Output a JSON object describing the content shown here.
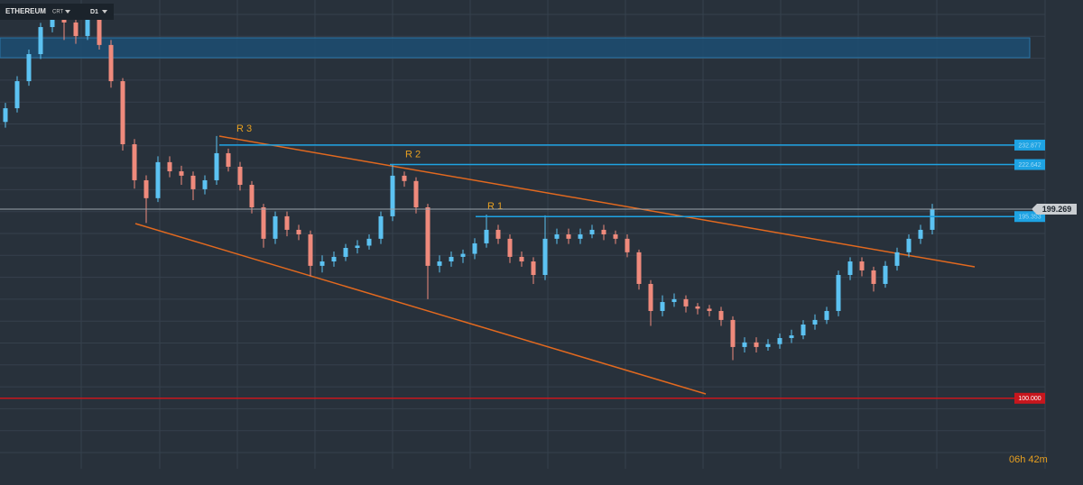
{
  "toolbar": {
    "symbol": "ETHEREUM",
    "chart_type": "CRT",
    "timeframe": "D1"
  },
  "chart_data": {
    "type": "candlestick",
    "open": [
      245.0,
      252.2,
      266.4,
      280.6,
      294.8,
      299.5,
      297.2,
      290.1,
      299.5,
      285.4,
      266.4,
      233.3,
      214.4,
      205.0,
      223.9,
      219.1,
      216.8,
      209.7,
      214.4,
      228.6,
      221.5,
      212.0,
      200.2,
      183.7,
      195.5,
      188.4,
      186.0,
      169.5,
      171.8,
      174.2,
      178.9,
      180.1,
      183.7,
      195.5,
      216.8,
      214.0,
      200.2,
      169.5,
      171.8,
      174.2,
      175.8,
      181.3,
      188.4,
      183.7,
      174.2,
      171.8,
      164.7,
      183.7,
      186.0,
      183.7,
      186.0,
      188.4,
      186.0,
      183.7,
      176.6,
      160.0,
      145.8,
      150.5,
      152.0,
      148.2,
      147.0,
      145.8,
      141.1,
      126.9,
      129.3,
      126.9,
      128.4,
      131.6,
      133.0,
      138.7,
      141.1,
      145.8,
      164.7,
      171.8,
      167.1,
      160.0,
      169.5,
      176.6,
      183.7,
      188.4
    ],
    "high": [
      255.0,
      269.0,
      283.0,
      297.0,
      302.0,
      302.0,
      300.0,
      302.0,
      302.0,
      288.0,
      268.0,
      236.0,
      217.0,
      227.0,
      227.0,
      222.0,
      219.0,
      217.0,
      237.6,
      231.0,
      224.0,
      214.0,
      202.0,
      198.0,
      198.0,
      191.0,
      188.0,
      175.0,
      177.0,
      181.0,
      183.0,
      186.0,
      198.0,
      222.4,
      219.0,
      216.0,
      202.0,
      175.0,
      177.0,
      178.0,
      184.0,
      196.4,
      191.0,
      186.0,
      177.0,
      174.0,
      196.0,
      189.0,
      189.0,
      189.0,
      191.0,
      191.0,
      188.0,
      186.0,
      178.0,
      162.0,
      154.0,
      155.0,
      154.0,
      150.0,
      149.0,
      148.0,
      143.0,
      132.0,
      132.0,
      131.0,
      134.0,
      136.0,
      141.0,
      144.0,
      148.0,
      167.0,
      174.0,
      174.0,
      169.0,
      172.0,
      179.0,
      186.0,
      191.0,
      202.0
    ],
    "low": [
      242.0,
      250.0,
      264.0,
      278.0,
      292.0,
      288.0,
      286.0,
      288.0,
      283.0,
      263.0,
      230.0,
      210.0,
      192.0,
      203.0,
      216.0,
      212.0,
      204.0,
      207.0,
      212.0,
      219.0,
      209.0,
      197.0,
      179.0,
      181.0,
      185.0,
      183.0,
      164.0,
      166.0,
      169.0,
      172.0,
      176.0,
      178.0,
      181.0,
      193.0,
      211.0,
      197.0,
      152.0,
      166.0,
      169.0,
      171.0,
      173.0,
      179.0,
      181.0,
      171.0,
      169.0,
      160.0,
      162.0,
      181.0,
      181.0,
      181.0,
      184.0,
      183.0,
      181.0,
      174.0,
      157.0,
      138.0,
      143.0,
      148.0,
      145.0,
      144.0,
      143.0,
      138.0,
      120.0,
      124.0,
      124.0,
      125.0,
      126.0,
      129.0,
      131.0,
      136.0,
      139.0,
      143.0,
      162.0,
      164.0,
      156.0,
      158.0,
      167.0,
      174.0,
      181.0,
      186.0
    ],
    "close": [
      252.2,
      266.4,
      280.6,
      294.8,
      299.5,
      297.2,
      290.1,
      299.5,
      285.4,
      266.4,
      233.3,
      214.4,
      205.0,
      223.9,
      219.1,
      216.8,
      209.7,
      214.4,
      228.6,
      221.5,
      212.0,
      200.2,
      183.7,
      195.5,
      188.4,
      186.0,
      169.5,
      171.8,
      174.2,
      178.9,
      180.1,
      183.7,
      195.5,
      216.8,
      214.0,
      200.2,
      169.5,
      171.8,
      174.2,
      175.8,
      181.3,
      188.4,
      183.7,
      174.2,
      171.8,
      164.7,
      183.7,
      186.0,
      183.7,
      186.0,
      188.4,
      186.0,
      183.7,
      176.6,
      160.0,
      145.8,
      150.5,
      152.0,
      148.2,
      147.0,
      145.8,
      141.1,
      126.9,
      129.3,
      126.9,
      128.4,
      131.6,
      133.0,
      138.7,
      141.1,
      145.8,
      164.7,
      171.8,
      167.1,
      160.0,
      169.5,
      176.6,
      183.7,
      188.4,
      199.3
    ],
    "colors": {
      "up": "#5cc2f2",
      "down": "#ef8a7c"
    },
    "ylim": [
      63,
      309
    ],
    "levels": [
      {
        "name": "R 3",
        "value": 232.877,
        "color": "#1ea3e3"
      },
      {
        "name": "R 2",
        "value": 222.642,
        "color": "#1ea3e3"
      },
      {
        "name": "R 1",
        "value": 195.353,
        "color": "#1ea3e3"
      },
      {
        "value": 100.0,
        "value_label": "100.000",
        "color": "#c8161d"
      }
    ],
    "last_price": 199.269
  },
  "timer": "06h 42m"
}
